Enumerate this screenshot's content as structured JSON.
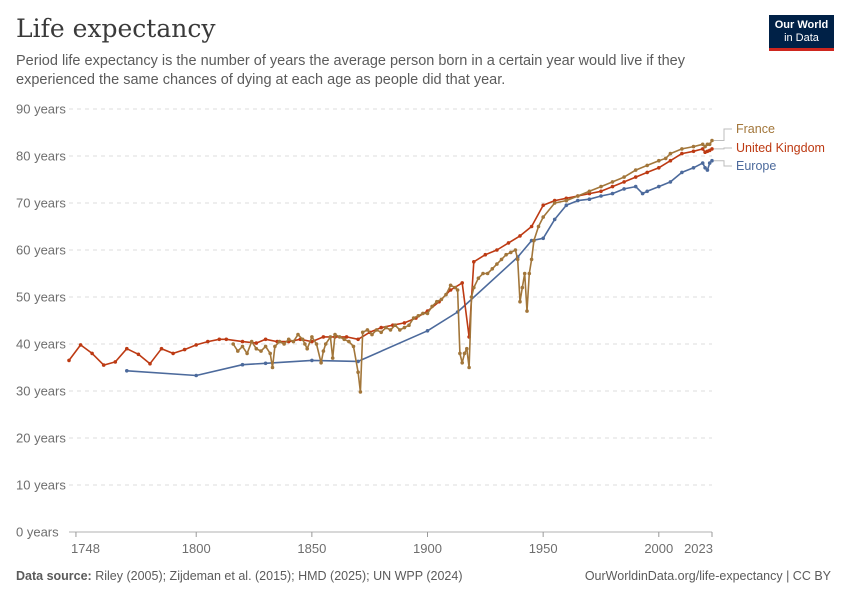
{
  "header": {
    "title": "Life expectancy",
    "subtitle": "Period life expectancy is the number of years the average person born in a certain year would live if they experienced the same chances of dying at each age as people did that year."
  },
  "logo": {
    "line1": "Our World",
    "line2": "in Data"
  },
  "footer": {
    "source_label": "Data source:",
    "source_text": "Riley (2005); Zijdeman et al. (2015); HMD (2025); UN WPP (2024)",
    "url": "OurWorldinData.org/life-expectancy | CC BY"
  },
  "chart_data": {
    "type": "line",
    "title": "Life expectancy",
    "xlabel": "",
    "ylabel": "",
    "xlim": [
      1745,
      2023
    ],
    "ylim": [
      0,
      90
    ],
    "y_ticks": [
      0,
      10,
      20,
      30,
      40,
      50,
      60,
      70,
      80,
      90
    ],
    "y_tick_labels": [
      "0 years",
      "10 years",
      "20 years",
      "30 years",
      "40 years",
      "50 years",
      "60 years",
      "70 years",
      "80 years",
      "90 years"
    ],
    "x_ticks": [
      1748,
      1800,
      1850,
      1900,
      1950,
      2000,
      2023
    ],
    "x_tick_labels": [
      "1748",
      "1800",
      "1850",
      "1900",
      "1950",
      "2000",
      "2023"
    ],
    "grid": true,
    "legend": "right-end labels",
    "series": [
      {
        "name": "France",
        "color": "#a2763a",
        "x": [
          1816,
          1818,
          1820,
          1822,
          1824,
          1826,
          1828,
          1830,
          1832,
          1833,
          1834,
          1836,
          1838,
          1840,
          1842,
          1844,
          1846,
          1847,
          1848,
          1850,
          1852,
          1854,
          1855,
          1856,
          1858,
          1859,
          1860,
          1862,
          1864,
          1866,
          1868,
          1870,
          1871,
          1872,
          1874,
          1876,
          1878,
          1880,
          1882,
          1884,
          1886,
          1888,
          1890,
          1892,
          1894,
          1896,
          1898,
          1900,
          1902,
          1904,
          1906,
          1908,
          1910,
          1912,
          1913,
          1914,
          1915,
          1916,
          1917,
          1918,
          1919,
          1920,
          1922,
          1924,
          1926,
          1928,
          1930,
          1932,
          1934,
          1936,
          1938,
          1939,
          1940,
          1941,
          1942,
          1943,
          1944,
          1945,
          1946,
          1948,
          1950,
          1955,
          1960,
          1965,
          1970,
          1975,
          1980,
          1985,
          1990,
          1995,
          2000,
          2003,
          2005,
          2010,
          2015,
          2019,
          2020,
          2021,
          2022,
          2023
        ],
        "values": [
          40.0,
          38.5,
          39.5,
          38.0,
          40.5,
          39.0,
          38.5,
          39.5,
          38.0,
          35.0,
          39.5,
          40.5,
          40.0,
          41.0,
          40.5,
          42.0,
          41.0,
          40.0,
          39.0,
          41.5,
          40.0,
          36.0,
          38.5,
          40.0,
          41.5,
          37.0,
          42.0,
          41.5,
          41.0,
          40.5,
          39.5,
          34.0,
          29.8,
          42.5,
          43.0,
          42.0,
          43.0,
          42.5,
          43.5,
          43.0,
          44.0,
          43.0,
          43.5,
          44.0,
          45.5,
          46.0,
          46.5,
          46.5,
          48.0,
          49.0,
          49.5,
          50.5,
          52.5,
          52.0,
          51.5,
          38.0,
          36.0,
          38.0,
          39.0,
          35.0,
          50.0,
          52.0,
          54.0,
          55.0,
          55.0,
          56.0,
          57.0,
          58.0,
          59.0,
          59.5,
          60.0,
          58.0,
          49.0,
          52.0,
          55.0,
          47.0,
          55.0,
          58.0,
          62.0,
          65.0,
          67.0,
          70.0,
          70.5,
          71.5,
          72.5,
          73.5,
          74.5,
          75.5,
          77.0,
          78.0,
          79.0,
          79.5,
          80.5,
          81.5,
          82.0,
          82.5,
          82.0,
          82.5,
          82.5,
          83.3
        ]
      },
      {
        "name": "United Kingdom",
        "color": "#bd3a13",
        "x": [
          1745,
          1750,
          1755,
          1760,
          1765,
          1770,
          1775,
          1780,
          1785,
          1790,
          1795,
          1800,
          1805,
          1810,
          1813,
          1820,
          1826,
          1830,
          1835,
          1840,
          1845,
          1850,
          1855,
          1860,
          1865,
          1870,
          1875,
          1880,
          1885,
          1890,
          1895,
          1900,
          1905,
          1910,
          1915,
          1918,
          1920,
          1925,
          1930,
          1935,
          1940,
          1945,
          1950,
          1955,
          1960,
          1965,
          1970,
          1975,
          1980,
          1985,
          1990,
          1995,
          2000,
          2005,
          2010,
          2015,
          2019,
          2020,
          2021,
          2022,
          2023
        ],
        "values": [
          36.5,
          39.8,
          38.0,
          35.5,
          36.2,
          39.0,
          37.8,
          35.8,
          39.0,
          38.0,
          38.8,
          39.8,
          40.5,
          41.0,
          41.0,
          40.5,
          40.2,
          41.0,
          40.5,
          40.5,
          41.0,
          40.5,
          41.5,
          41.5,
          41.5,
          41.0,
          42.5,
          43.5,
          44.0,
          44.5,
          45.5,
          47.0,
          49.0,
          51.5,
          53.0,
          41.5,
          57.5,
          59.0,
          60.0,
          61.5,
          63.0,
          65.0,
          69.5,
          70.5,
          71.0,
          71.5,
          72.0,
          72.5,
          73.5,
          74.5,
          75.5,
          76.5,
          77.5,
          79.0,
          80.5,
          81.0,
          81.5,
          80.8,
          81.0,
          81.2,
          81.5
        ]
      },
      {
        "name": "Europe",
        "color": "#4c6a9c",
        "x": [
          1770,
          1800,
          1820,
          1830,
          1850,
          1870,
          1900,
          1913,
          1939,
          1945,
          1950,
          1955,
          1960,
          1965,
          1970,
          1975,
          1980,
          1985,
          1990,
          1993,
          1995,
          2000,
          2005,
          2010,
          2015,
          2019,
          2020,
          2021,
          2022,
          2023
        ],
        "values": [
          34.3,
          33.3,
          35.6,
          35.9,
          36.5,
          36.3,
          42.8,
          46.8,
          58.5,
          62.0,
          62.5,
          66.5,
          69.5,
          70.5,
          70.8,
          71.5,
          72.0,
          73.0,
          73.5,
          72.0,
          72.5,
          73.5,
          74.5,
          76.5,
          77.5,
          78.5,
          77.5,
          77.0,
          78.5,
          79.0
        ]
      }
    ]
  }
}
